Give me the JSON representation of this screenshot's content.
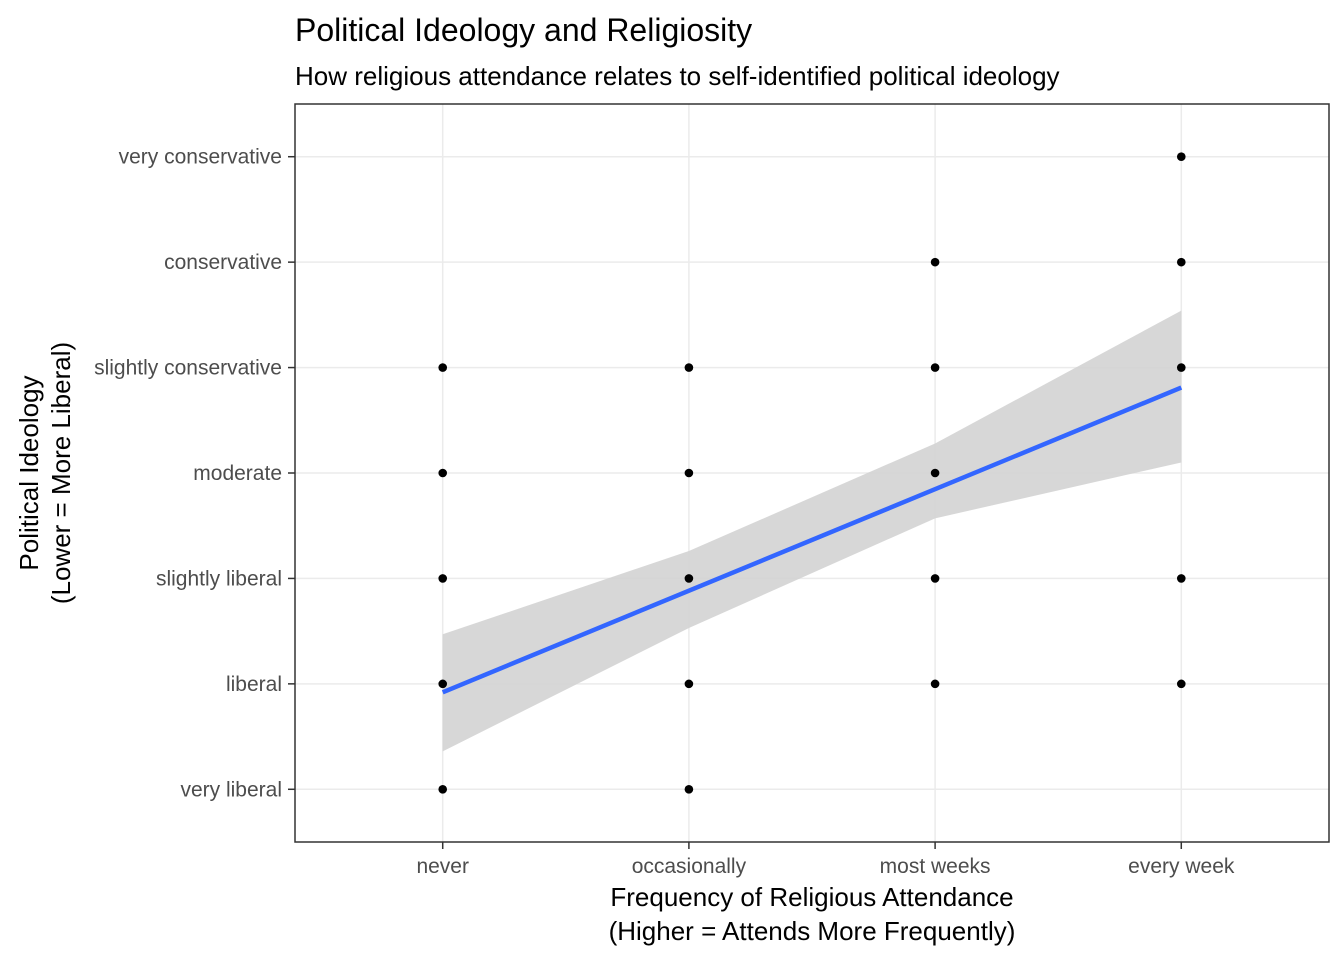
{
  "chart_data": {
    "type": "scatter",
    "title": "Political Ideology and Religiosity",
    "subtitle": "How religious attendance relates to self-identified political ideology",
    "xlabel_lines": [
      "Frequency of Religious Attendance",
      "(Higher = Attends More Frequently)"
    ],
    "ylabel_lines": [
      "Political Ideology",
      "(Lower = More Liberal)"
    ],
    "x_categories": [
      "never",
      "occasionally",
      "most weeks",
      "every week"
    ],
    "y_categories": [
      "very liberal",
      "liberal",
      "slightly liberal",
      "moderate",
      "slightly conservative",
      "conservative",
      "very conservative"
    ],
    "xlim": [
      0.4,
      4.6
    ],
    "ylim": [
      0.5,
      7.5
    ],
    "grid": true,
    "points": [
      {
        "x": 1,
        "y": 1
      },
      {
        "x": 1,
        "y": 2
      },
      {
        "x": 1,
        "y": 3
      },
      {
        "x": 1,
        "y": 4
      },
      {
        "x": 1,
        "y": 5
      },
      {
        "x": 2,
        "y": 1
      },
      {
        "x": 2,
        "y": 2
      },
      {
        "x": 2,
        "y": 3
      },
      {
        "x": 2,
        "y": 4
      },
      {
        "x": 2,
        "y": 5
      },
      {
        "x": 3,
        "y": 2
      },
      {
        "x": 3,
        "y": 3
      },
      {
        "x": 3,
        "y": 4
      },
      {
        "x": 3,
        "y": 5
      },
      {
        "x": 3,
        "y": 6
      },
      {
        "x": 4,
        "y": 2
      },
      {
        "x": 4,
        "y": 3
      },
      {
        "x": 4,
        "y": 5
      },
      {
        "x": 4,
        "y": 6
      },
      {
        "x": 4,
        "y": 7
      }
    ],
    "trend_line": {
      "x": [
        1,
        4
      ],
      "y": [
        1.92,
        4.81
      ],
      "color": "#3366ff"
    },
    "confidence_band": {
      "x": [
        1,
        2,
        3,
        4
      ],
      "lower": [
        1.36,
        2.53,
        3.57,
        4.1
      ],
      "upper": [
        2.47,
        3.26,
        4.28,
        5.54
      ],
      "color": "#d3d3d3"
    },
    "point_color": "#000000"
  }
}
